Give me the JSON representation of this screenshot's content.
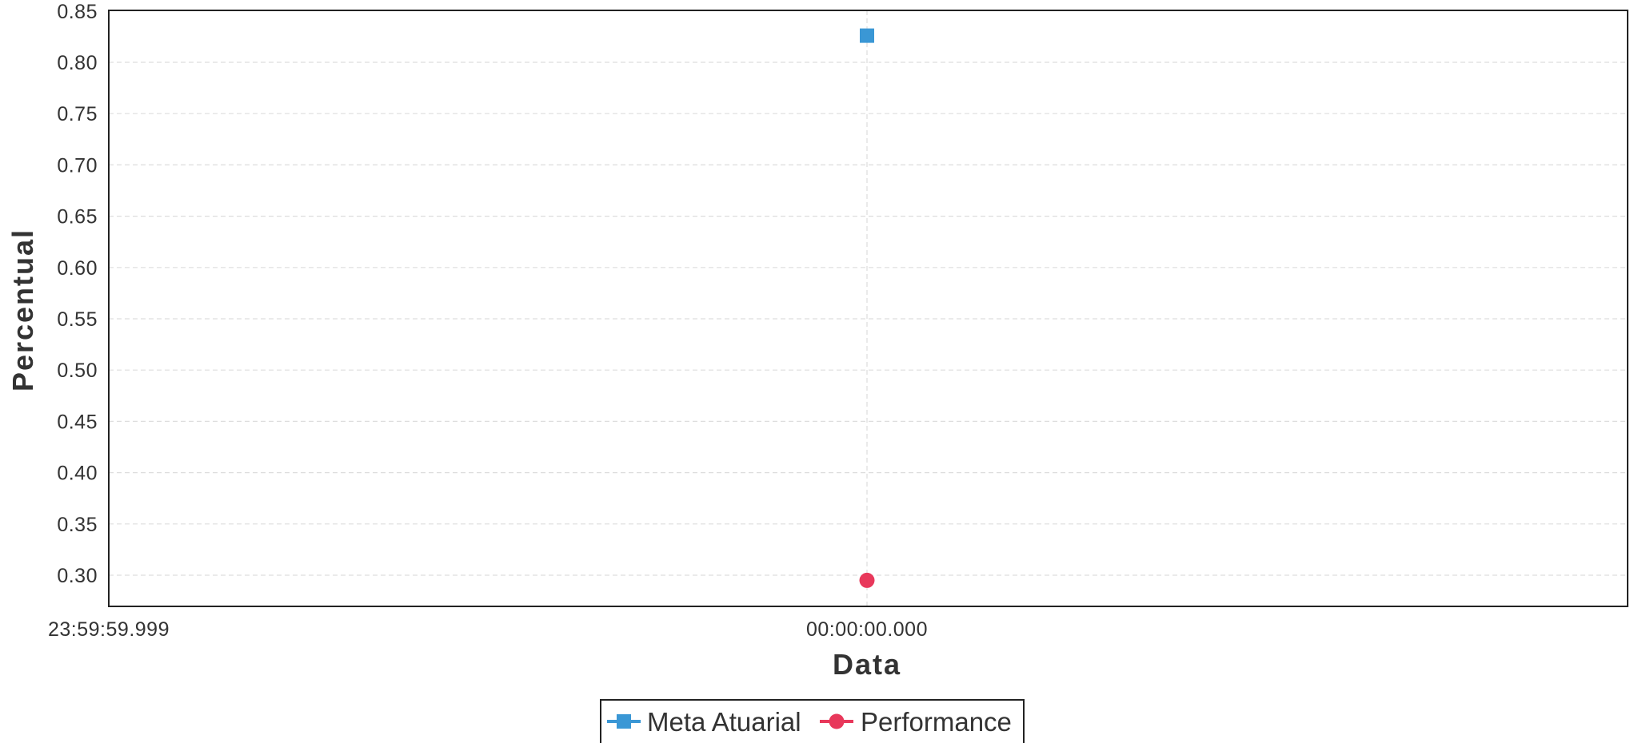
{
  "chart_data": {
    "type": "scatter",
    "xlabel": "Data",
    "ylabel": "Percentual",
    "x_tick_labels": [
      "23:59:59.999",
      "00:00:00.000"
    ],
    "ylim": [
      0.27,
      0.85
    ],
    "y_ticks": [
      0.3,
      0.35,
      0.4,
      0.45,
      0.5,
      0.55,
      0.6,
      0.65,
      0.7,
      0.75,
      0.8,
      0.85
    ],
    "grid": true,
    "legend_position": "bottom-center",
    "series": [
      {
        "name": "Meta Atuarial",
        "marker": "square",
        "color": "#3a97d5",
        "x": "00:00:00.000",
        "y": 0.826
      },
      {
        "name": "Performance",
        "marker": "circle",
        "color": "#e8385b",
        "x": "00:00:00.000",
        "y": 0.295
      }
    ]
  }
}
